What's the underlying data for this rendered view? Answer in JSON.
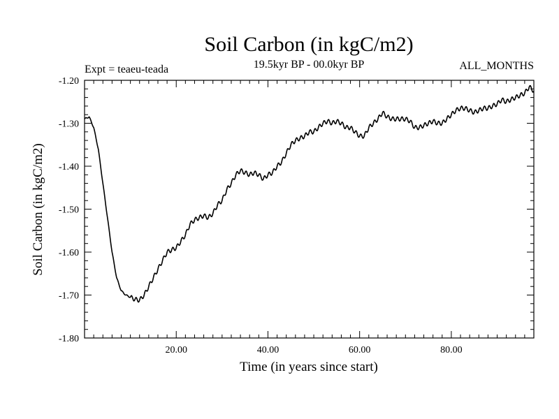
{
  "chart_data": {
    "type": "line",
    "title": "Soil Carbon (in kgC/m2)",
    "subtitle": "19.5kyr BP - 00.0kyr BP",
    "expt_label": "Expt = teaeu-teada",
    "period_label": "ALL_MONTHS",
    "xlabel": "Time (in years since start)",
    "ylabel": "Soil Carbon (in kgC/m2)",
    "xlim": [
      0,
      98
    ],
    "ylim": [
      -1.8,
      -1.2
    ],
    "xticks": [
      20,
      40,
      60,
      80
    ],
    "xtick_labels": [
      "20.00",
      "40.00",
      "60.00",
      "80.00"
    ],
    "yticks": [
      -1.2,
      -1.3,
      -1.4,
      -1.5,
      -1.6,
      -1.7,
      -1.8
    ],
    "ytick_labels": [
      "-1.20",
      "-1.30",
      "-1.40",
      "-1.50",
      "-1.60",
      "-1.70",
      "-1.80"
    ],
    "series": [
      {
        "name": "Soil Carbon",
        "x": [
          0,
          1,
          2,
          3,
          4,
          5,
          6,
          7,
          8,
          9,
          10,
          11,
          12,
          13,
          14,
          15,
          16,
          17,
          18,
          19,
          20,
          21,
          22,
          23,
          24,
          25,
          26,
          27,
          28,
          29,
          30,
          31,
          32,
          33,
          34,
          35,
          36,
          37,
          38,
          39,
          40,
          41,
          42,
          43,
          44,
          45,
          46,
          47,
          48,
          49,
          50,
          51,
          52,
          53,
          54,
          55,
          56,
          57,
          58,
          59,
          60,
          61,
          62,
          63,
          64,
          65,
          66,
          67,
          68,
          69,
          70,
          71,
          72,
          73,
          74,
          75,
          76,
          77,
          78,
          79,
          80,
          81,
          82,
          83,
          84,
          85,
          86,
          87,
          88,
          89,
          90,
          91,
          92,
          93,
          94,
          95,
          96,
          97,
          98
        ],
        "values": [
          -1.29,
          -1.285,
          -1.31,
          -1.36,
          -1.44,
          -1.52,
          -1.6,
          -1.66,
          -1.69,
          -1.7,
          -1.705,
          -1.71,
          -1.712,
          -1.7,
          -1.68,
          -1.66,
          -1.64,
          -1.62,
          -1.6,
          -1.595,
          -1.59,
          -1.575,
          -1.56,
          -1.535,
          -1.525,
          -1.52,
          -1.515,
          -1.52,
          -1.51,
          -1.49,
          -1.48,
          -1.455,
          -1.44,
          -1.42,
          -1.41,
          -1.415,
          -1.42,
          -1.415,
          -1.42,
          -1.43,
          -1.42,
          -1.415,
          -1.4,
          -1.39,
          -1.37,
          -1.35,
          -1.34,
          -1.335,
          -1.33,
          -1.32,
          -1.32,
          -1.31,
          -1.3,
          -1.295,
          -1.3,
          -1.295,
          -1.3,
          -1.31,
          -1.31,
          -1.32,
          -1.33,
          -1.33,
          -1.31,
          -1.3,
          -1.29,
          -1.275,
          -1.285,
          -1.29,
          -1.29,
          -1.29,
          -1.29,
          -1.295,
          -1.31,
          -1.31,
          -1.305,
          -1.3,
          -1.295,
          -1.3,
          -1.3,
          -1.29,
          -1.28,
          -1.27,
          -1.265,
          -1.265,
          -1.27,
          -1.275,
          -1.27,
          -1.265,
          -1.265,
          -1.26,
          -1.255,
          -1.245,
          -1.25,
          -1.245,
          -1.24,
          -1.235,
          -1.23,
          -1.215,
          -1.225
        ]
      }
    ]
  }
}
